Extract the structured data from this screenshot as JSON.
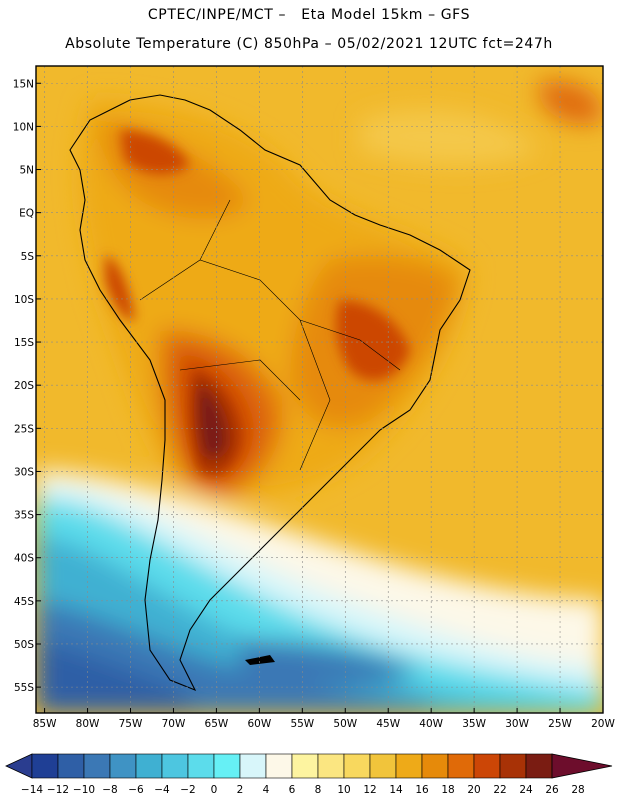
{
  "header": {
    "line1": "CPTEC/INPE/MCT –   Eta Model 15km – GFS",
    "line2": "Absolute Temperature (C) 850hPa – 05/02/2021 12UTC fct=247h"
  },
  "map": {
    "region": "South America",
    "variable": "Absolute Temperature",
    "units": "C",
    "level": "850hPa",
    "lon_range": [
      -86,
      -20
    ],
    "lat_range": [
      -58,
      17
    ],
    "lat_labels": [
      "15N",
      "10N",
      "5N",
      "EQ",
      "5S",
      "10S",
      "15S",
      "20S",
      "25S",
      "30S",
      "35S",
      "40S",
      "45S",
      "50S",
      "55S"
    ],
    "lat_values": [
      15,
      10,
      5,
      0,
      -5,
      -10,
      -15,
      -20,
      -25,
      -30,
      -35,
      -40,
      -45,
      -50,
      -55
    ],
    "lon_labels": [
      "85W",
      "80W",
      "75W",
      "70W",
      "65W",
      "60W",
      "55W",
      "50W",
      "45W",
      "40W",
      "35W",
      "30W",
      "25W",
      "20W"
    ],
    "lon_values": [
      -85,
      -80,
      -75,
      -70,
      -65,
      -60,
      -55,
      -50,
      -45,
      -40,
      -35,
      -30,
      -25,
      -20
    ]
  },
  "colorbar": {
    "labels": [
      "-14",
      "-12",
      "-10",
      "-8",
      "-6",
      "-4",
      "-2",
      "0",
      "2",
      "4",
      "6",
      "8",
      "10",
      "12",
      "14",
      "16",
      "18",
      "20",
      "22",
      "24",
      "26",
      "28"
    ],
    "colors": [
      "#2a3d8f",
      "#1f3f95",
      "#2f5fa6",
      "#3b78b5",
      "#3f93c4",
      "#3fb0d2",
      "#4dc6e0",
      "#5cdceb",
      "#66f0f5",
      "#d8f6fa",
      "#fdf8e8",
      "#fdf4a0",
      "#fbe681",
      "#f8d85e",
      "#f1c43b",
      "#eeaa18",
      "#e68a0a",
      "#e06a08",
      "#cc4606",
      "#a83206",
      "#7a1c12",
      "#6d0d2c"
    ]
  }
}
